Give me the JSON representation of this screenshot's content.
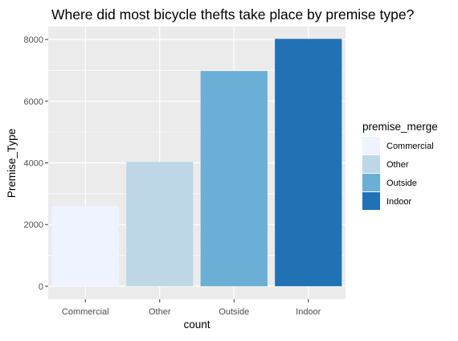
{
  "chart_data": {
    "type": "bar",
    "title": "Where did most bicycle thefts take place by premise type?",
    "xlabel": "count",
    "ylabel": "Premise_Type",
    "categories": [
      "Commercial",
      "Other",
      "Outside",
      "Indoor"
    ],
    "values": [
      2600,
      4030,
      6980,
      8020
    ],
    "colors": [
      "#eff3ff",
      "#bdd7e7",
      "#6baed6",
      "#2171b5"
    ],
    "ylim": [
      -420,
      8420
    ],
    "yticks": [
      0,
      2000,
      4000,
      6000,
      8000
    ],
    "ytick_labels": [
      "0",
      "2000",
      "4000",
      "6000",
      "8000"
    ],
    "grid": true,
    "panel_color": "#ebebeb",
    "legend": {
      "title": "premise_merge",
      "position": "right",
      "entries": [
        "Commercial",
        "Other",
        "Outside",
        "Indoor"
      ]
    }
  }
}
